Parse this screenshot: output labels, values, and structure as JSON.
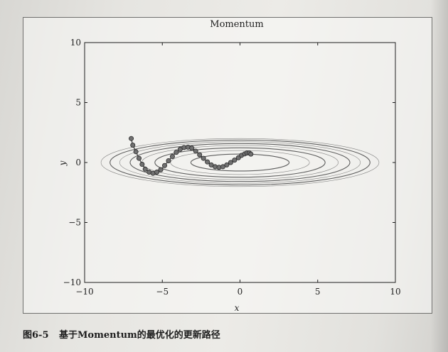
{
  "caption": {
    "number": "图6-5",
    "text": "基于Momentum的最优化的更新路径"
  },
  "chart_data": {
    "type": "scatter",
    "title": "Momentum",
    "xlabel": "x",
    "ylabel": "y",
    "xlim": [
      -10,
      10
    ],
    "ylim": [
      -10,
      10
    ],
    "xticks": [
      -10,
      -5,
      0,
      5,
      10
    ],
    "yticks": [
      -10,
      -5,
      0,
      5,
      10
    ],
    "xtick_labels": [
      "−10",
      "−5",
      "0",
      "5",
      "10"
    ],
    "ytick_labels": [
      "−10",
      "−5",
      "0",
      "5",
      "10"
    ],
    "grid": false,
    "contour": {
      "function": "f(x, y) = x^2/20 + y^2",
      "minimum": [
        0,
        0
      ],
      "levels": [
        0.5,
        1.0,
        1.5,
        2.0,
        2.5,
        3.0,
        3.5,
        4.0
      ]
    },
    "series": [
      {
        "x": [
          -7.0,
          -6.9,
          -6.7,
          -6.5,
          -6.3,
          -6.1,
          -5.85,
          -5.6,
          -5.35,
          -5.1,
          -4.85,
          -4.6,
          -4.35,
          -4.1,
          -3.85,
          -3.6,
          -3.35,
          -3.1,
          -2.85,
          -2.6,
          -2.35,
          -2.1,
          -1.85,
          -1.6,
          -1.35,
          -1.1,
          -0.85,
          -0.6,
          -0.35,
          -0.1,
          0.1,
          0.3,
          0.45,
          0.6,
          0.7
        ],
        "y": [
          2.0,
          1.45,
          0.9,
          0.35,
          -0.15,
          -0.55,
          -0.8,
          -0.9,
          -0.8,
          -0.6,
          -0.25,
          0.15,
          0.5,
          0.85,
          1.1,
          1.25,
          1.28,
          1.2,
          0.95,
          0.65,
          0.35,
          0.05,
          -0.2,
          -0.35,
          -0.4,
          -0.35,
          -0.2,
          0.0,
          0.2,
          0.4,
          0.6,
          0.72,
          0.8,
          0.8,
          0.7
        ]
      }
    ]
  },
  "colors": {
    "marker_fill": "#707070",
    "marker_stroke": "#2a2a2a",
    "path": "#3a3a3a",
    "contour": "#555555"
  }
}
